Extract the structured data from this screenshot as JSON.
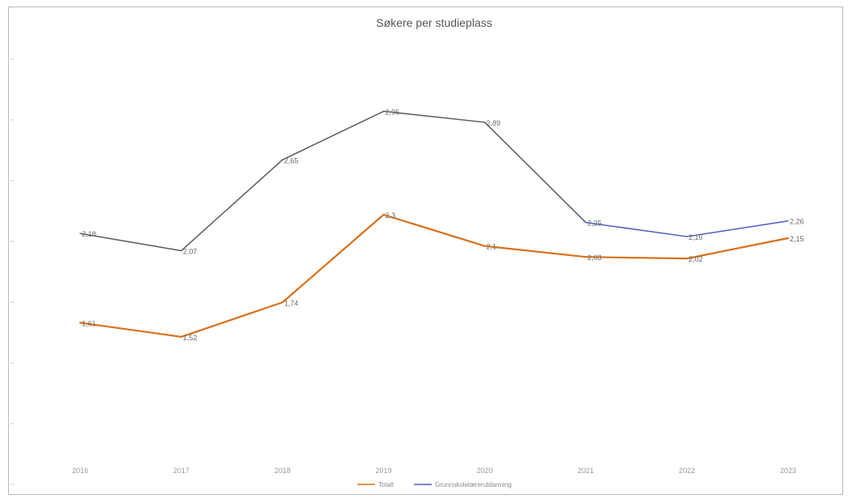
{
  "chart_data": {
    "type": "line",
    "title": "Søkere per studieplass",
    "xlabel": "",
    "ylabel": "",
    "categories": [
      "2016",
      "2017",
      "2018",
      "2019",
      "2020",
      "2021",
      "2022",
      "2023"
    ],
    "ylim": [
      0.8,
      3.2
    ],
    "grid": false,
    "legend_position": "bottom",
    "series": [
      {
        "name": "Totalt",
        "color": "#d9701c",
        "values": [
          1.61,
          1.52,
          1.74,
          2.3,
          2.1,
          2.03,
          2.02,
          2.15
        ],
        "labels": [
          "1,61",
          "1,52",
          "1,74",
          "2,3",
          "2,1",
          "2,03",
          "2,02",
          "2,15"
        ]
      },
      {
        "name": "Grunnskolelærerutdanning",
        "color": "#5a5a5a",
        "segment_colors": [
          "#5a5a5a",
          "#5a5a5a",
          "#5a5a5a",
          "#5a5a5a",
          "#5a5a5a",
          "#4a5fc1",
          "#4a5fc1"
        ],
        "values": [
          2.18,
          2.07,
          2.65,
          2.96,
          2.89,
          2.25,
          2.16,
          2.26
        ],
        "labels": [
          "2,18",
          "2,07",
          "2,65",
          "2,96",
          "2,89",
          "2,25",
          "2,16",
          "2,26"
        ]
      }
    ]
  }
}
